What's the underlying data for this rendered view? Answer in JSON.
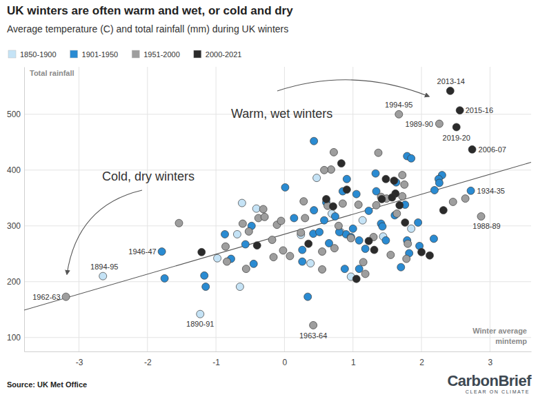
{
  "chart_data": {
    "type": "scatter",
    "title": "UK winters are often warm and wet, or cold and dry",
    "subtitle": "Average temperature (C) and total rainfall (mm) during UK winters",
    "x_label": "Winter average mintemp",
    "y_label": "Total rainfall",
    "source": "Source: UK Met Office",
    "logo": "CarbonBrief",
    "logo_tagline": "CLEAR ON CLIMATE",
    "annotations": [
      {
        "text": "Warm, wet winters"
      },
      {
        "text": "Cold, dry winters"
      }
    ],
    "xlim": [
      -3.8,
      3.6
    ],
    "ylim": [
      75,
      585
    ],
    "xticks": [
      -3,
      -2,
      -1,
      0,
      1,
      2,
      3
    ],
    "yticks": [
      100,
      200,
      300,
      400,
      500
    ],
    "grid": true,
    "legend": "top-left",
    "marker": "circle",
    "trend_line": {
      "x": [
        -3.8,
        3.6
      ],
      "values": [
        149,
        414
      ]
    },
    "series": [
      {
        "name": "1850-1900",
        "color": "#c5e3f6",
        "x": [
          -2.65,
          -1.23,
          -0.98,
          -0.62,
          -0.69,
          -0.41,
          -0.65,
          0.24,
          0.38,
          0.47,
          0.82,
          0.97,
          0.69,
          1.14,
          1.85,
          1.44
        ],
        "values": [
          210,
          142,
          242,
          341,
          285,
          331,
          191,
          284,
          233,
          386,
          289,
          209,
          322,
          310,
          295,
          281
        ],
        "point_labels": [
          "1894-95",
          "1890-91",
          null,
          null,
          null,
          null,
          null,
          null,
          null,
          null,
          null,
          null,
          null,
          null,
          null,
          null
        ]
      },
      {
        "name": "1901-1950",
        "color": "#2a8bd2",
        "x": [
          -1.79,
          2.72,
          0.43,
          -1.75,
          -1.17,
          -1.15,
          -0.87,
          -0.78,
          -0.45,
          -0.57,
          -0.48,
          0.01,
          0.14,
          0.26,
          0.34,
          0.42,
          0.51,
          0.58,
          0.65,
          0.85,
          0.91,
          1.05,
          1.0,
          1.09,
          0.88,
          1.18,
          1.23,
          1.34,
          1.41,
          1.48,
          1.33,
          1.63,
          1.76,
          1.79,
          1.85,
          1.95,
          1.97,
          1.7,
          1.79,
          2.18,
          2.3,
          2.25,
          2.26,
          2.19,
          1.82,
          0.9,
          0.74,
          0.8,
          0.97,
          1.09,
          0.26,
          0.43,
          0.61,
          1.43,
          1.61
        ],
        "values": [
          254,
          363,
          452,
          206,
          211,
          191,
          285,
          241,
          232,
          267,
          300,
          369,
          314,
          236,
          173,
          286,
          289,
          310,
          269,
          362,
          384,
          357,
          295,
          223,
          223,
          259,
          327,
          362,
          304,
          274,
          394,
          378,
          338,
          425,
          421,
          306,
          264,
          226,
          274,
          277,
          391,
          384,
          377,
          364,
          251,
          285,
          317,
          289,
          280,
          274,
          257,
          328,
          342,
          299,
          319
        ],
        "point_labels": [
          "1946-47",
          "1934-35",
          null,
          null,
          null,
          null,
          null,
          null,
          null,
          null,
          null,
          null,
          null,
          null,
          null,
          null,
          null,
          null,
          null,
          null,
          null,
          null,
          null,
          null,
          null,
          null,
          null,
          null,
          null,
          null,
          null,
          null,
          null,
          null,
          null,
          null,
          null,
          null,
          null,
          null,
          null,
          null,
          null,
          null,
          null,
          null,
          null,
          null,
          null,
          null,
          null,
          null,
          null,
          null,
          null
        ]
      },
      {
        "name": "1951-2000",
        "color": "#9e9e9e",
        "x": [
          -3.19,
          0.42,
          1.67,
          2.26,
          2.87,
          -1.54,
          -0.86,
          -0.84,
          -0.61,
          -0.52,
          -0.38,
          -0.31,
          -0.29,
          -0.56,
          -0.18,
          -0.16,
          -0.11,
          -0.05,
          -0.02,
          0.08,
          0.24,
          0.28,
          0.55,
          0.63,
          0.68,
          0.72,
          0.73,
          0.79,
          0.85,
          1.08,
          1.15,
          1.3,
          1.37,
          1.41,
          1.49,
          1.64,
          1.72,
          1.72,
          1.75,
          1.78,
          1.8,
          2.46,
          2.64,
          1.18,
          0.55,
          0.58,
          0.3,
          0.97,
          1.34,
          1.55
        ],
        "values": [
          173,
          122,
          500,
          483,
          317,
          305,
          263,
          236,
          304,
          290,
          314,
          330,
          316,
          223,
          275,
          244,
          302,
          309,
          256,
          246,
          288,
          344,
          222,
          336,
          401,
          432,
          260,
          300,
          340,
          338,
          235,
          280,
          431,
          352,
          349,
          322,
          353,
          391,
          374,
          241,
          268,
          343,
          349,
          214,
          254,
          400,
          314,
          278,
          337,
          248
        ],
        "point_labels": [
          "1962-63",
          "1963-64",
          "1994-95",
          "1989-90",
          "1988-89",
          null,
          null,
          null,
          null,
          null,
          null,
          null,
          null,
          null,
          null,
          null,
          null,
          null,
          null,
          null,
          null,
          null,
          null,
          null,
          null,
          null,
          null,
          null,
          null,
          null,
          null,
          null,
          null,
          null,
          null,
          null,
          null,
          null,
          null,
          null,
          null,
          null,
          null,
          null,
          null,
          null,
          null,
          null,
          null,
          null
        ]
      },
      {
        "name": "2000-2021",
        "color": "#2b2b2b",
        "x": [
          2.42,
          2.56,
          2.51,
          2.74,
          -1.21,
          -0.4,
          0.35,
          0.61,
          0.71,
          0.83,
          0.91,
          1.05,
          1.23,
          1.31,
          1.42,
          1.48,
          1.6,
          1.62,
          1.68,
          1.76,
          2.0,
          2.12,
          2.32,
          1.57
        ],
        "values": [
          542,
          507,
          477,
          437,
          253,
          265,
          268,
          348,
          335,
          412,
          365,
          205,
          273,
          257,
          348,
          384,
          381,
          358,
          337,
          306,
          253,
          247,
          328,
          351
        ],
        "point_labels": [
          "2013-14",
          "2015-16",
          "2019-20",
          "2006-07",
          null,
          null,
          null,
          null,
          null,
          null,
          null,
          null,
          null,
          null,
          null,
          null,
          null,
          null,
          null,
          null,
          null,
          null,
          null,
          null
        ]
      }
    ]
  }
}
